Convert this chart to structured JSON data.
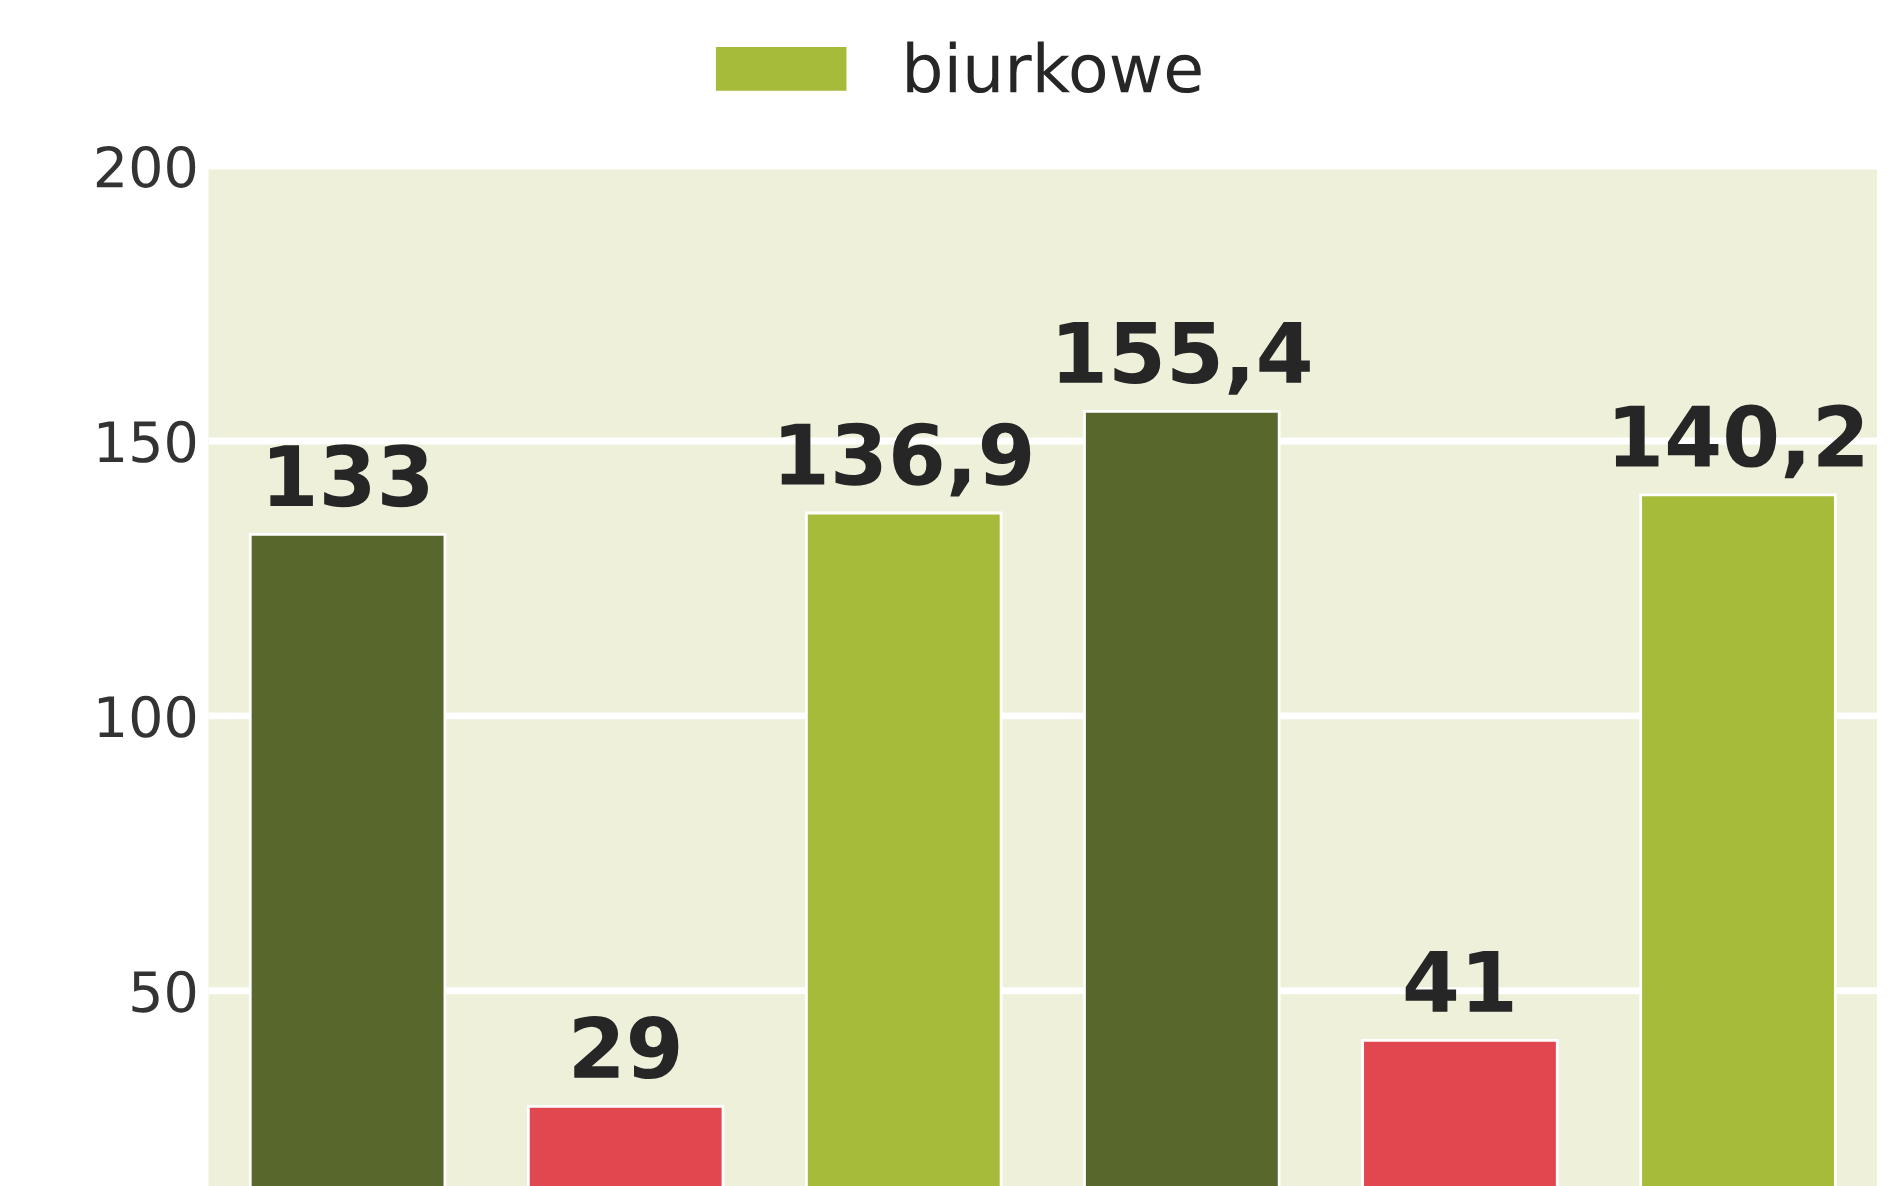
{
  "chart_data": {
    "type": "bar",
    "categories": [
      null,
      null
    ],
    "series": [
      {
        "color": "#58682c",
        "values": [
          133,
          155.4
        ],
        "value_labels": [
          "133",
          "155,4"
        ]
      },
      {
        "color": "#e0474f",
        "values": [
          29,
          41
        ],
        "value_labels": [
          "29",
          "41"
        ]
      },
      {
        "name": "biurkowe",
        "color": "#a6bb3a",
        "values": [
          136.9,
          140.2
        ],
        "value_labels": [
          "136,9",
          "140,2"
        ]
      }
    ],
    "ylim": [
      14.5,
      200
    ],
    "yticks": [
      50,
      100,
      150,
      200
    ],
    "grid": "y",
    "legend": "top",
    "tick_labels": "y"
  }
}
